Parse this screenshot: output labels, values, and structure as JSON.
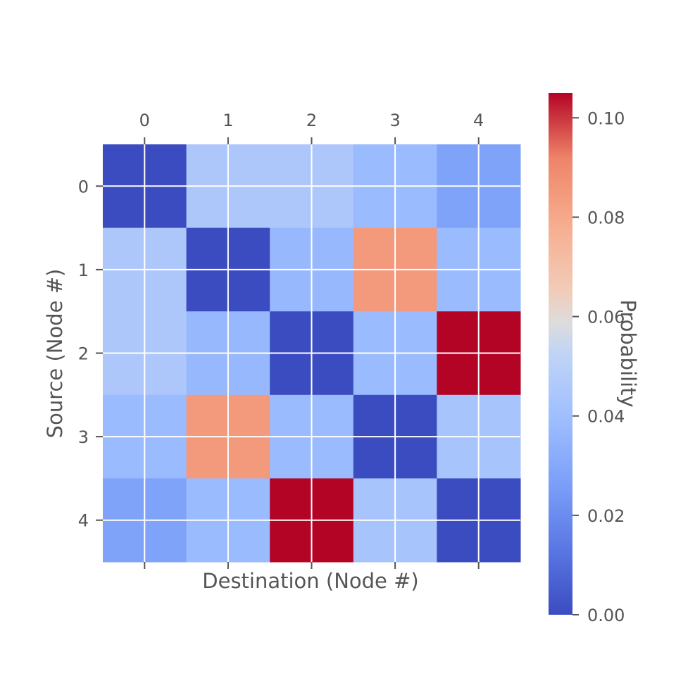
{
  "chart_data": {
    "type": "heatmap",
    "x_categories": [
      "0",
      "1",
      "2",
      "3",
      "4"
    ],
    "y_categories": [
      "0",
      "1",
      "2",
      "3",
      "4"
    ],
    "values": [
      [
        0.0,
        0.045,
        0.045,
        0.038,
        0.028
      ],
      [
        0.045,
        0.0,
        0.037,
        0.085,
        0.038
      ],
      [
        0.045,
        0.037,
        0.0,
        0.038,
        0.105
      ],
      [
        0.038,
        0.085,
        0.038,
        0.0,
        0.043
      ],
      [
        0.028,
        0.038,
        0.105,
        0.043,
        0.0
      ]
    ],
    "xlabel": "Destination (Node #)",
    "ylabel": "Source (Node #)",
    "colorbar": {
      "label": "Probability",
      "range": [
        0.0,
        0.105
      ],
      "ticks": [
        0.0,
        0.02,
        0.04,
        0.06,
        0.08,
        0.1
      ],
      "tick_labels": [
        "0.00",
        "0.02",
        "0.04",
        "0.06",
        "0.08",
        "0.10"
      ]
    },
    "colormap": "coolwarm",
    "x_ticks_position": "top",
    "grid": true
  }
}
